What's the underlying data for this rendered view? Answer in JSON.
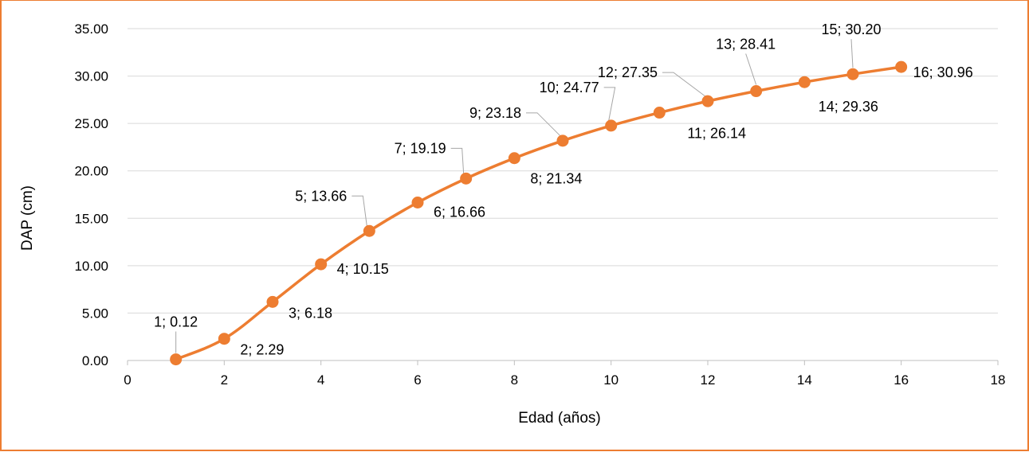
{
  "chart_data": {
    "type": "scatter",
    "title": "",
    "xlabel": "Edad (años)",
    "ylabel": "DAP (cm)",
    "xlim": [
      0,
      18
    ],
    "ylim": [
      0,
      35
    ],
    "x_ticks": [
      "0",
      "2",
      "4",
      "6",
      "8",
      "10",
      "12",
      "14",
      "16",
      "18"
    ],
    "y_ticks": [
      "0.00",
      "5.00",
      "10.00",
      "15.00",
      "20.00",
      "25.00",
      "30.00",
      "35.00"
    ],
    "grid": true,
    "legend": "none",
    "line_style": "smoothed",
    "color": "#ed7d31",
    "series": [
      {
        "x": [
          1,
          2,
          3,
          4,
          5,
          6,
          7,
          8,
          9,
          10,
          11,
          12,
          13,
          14,
          15,
          16
        ],
        "y": [
          0.12,
          2.29,
          6.18,
          10.15,
          13.66,
          16.66,
          19.19,
          21.34,
          23.18,
          24.77,
          26.14,
          27.35,
          28.41,
          29.36,
          30.2,
          30.96
        ],
        "labels": [
          "1; 0.12",
          "2; 2.29",
          "3; 6.18",
          "4; 10.15",
          "5; 13.66",
          "6; 16.66",
          "7; 19.19",
          "8; 21.34",
          "9; 23.18",
          "10; 24.77",
          "11; 26.14",
          "12; 27.35",
          "13; 28.41",
          "14; 29.36",
          "15; 30.20",
          "16; 30.96"
        ]
      }
    ]
  }
}
